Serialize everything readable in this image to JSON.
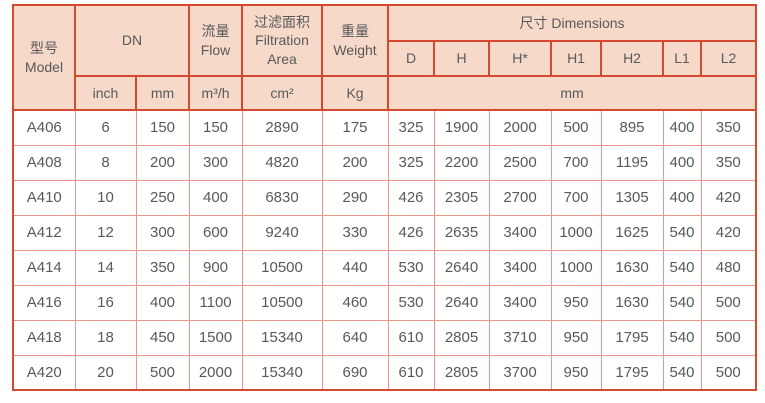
{
  "table": {
    "header": {
      "model": "型号\nModel",
      "dn": "DN",
      "flow": "流量\nFlow",
      "filtration_area": "过滤面积\nFiltration\nArea",
      "weight": "重量\nWeight",
      "dimensions": "尺寸 Dimensions",
      "dim_cols": [
        "D",
        "H",
        "H*",
        "H1",
        "H2",
        "L1",
        "L2"
      ],
      "units": {
        "inch": "inch",
        "mm": "mm",
        "flow": "m³/h",
        "area": "cm²",
        "weight": "Kg",
        "dims_mm": "mm"
      }
    },
    "rows": [
      [
        "A406",
        "6",
        "150",
        "150",
        "2890",
        "175",
        "325",
        "1900",
        "2000",
        "500",
        "895",
        "400",
        "350"
      ],
      [
        "A408",
        "8",
        "200",
        "300",
        "4820",
        "200",
        "325",
        "2200",
        "2500",
        "700",
        "1195",
        "400",
        "350"
      ],
      [
        "A410",
        "10",
        "250",
        "400",
        "6830",
        "290",
        "426",
        "2305",
        "2700",
        "700",
        "1305",
        "400",
        "420"
      ],
      [
        "A412",
        "12",
        "300",
        "600",
        "9240",
        "330",
        "426",
        "2635",
        "3400",
        "1000",
        "1625",
        "540",
        "420"
      ],
      [
        "A414",
        "14",
        "350",
        "900",
        "10500",
        "440",
        "530",
        "2640",
        "3400",
        "1000",
        "1630",
        "540",
        "480"
      ],
      [
        "A416",
        "16",
        "400",
        "1100",
        "10500",
        "460",
        "530",
        "2640",
        "3400",
        "950",
        "1630",
        "540",
        "500"
      ],
      [
        "A418",
        "18",
        "450",
        "1500",
        "15340",
        "640",
        "610",
        "2805",
        "3710",
        "950",
        "1795",
        "540",
        "500"
      ],
      [
        "A420",
        "20",
        "500",
        "2000",
        "15340",
        "690",
        "610",
        "2805",
        "3700",
        "950",
        "1795",
        "540",
        "500"
      ]
    ]
  },
  "colors": {
    "header_bg": "#f6d9c8",
    "border_strong": "#d5492f",
    "border_light": "#ee968c",
    "text": "#58595b"
  }
}
